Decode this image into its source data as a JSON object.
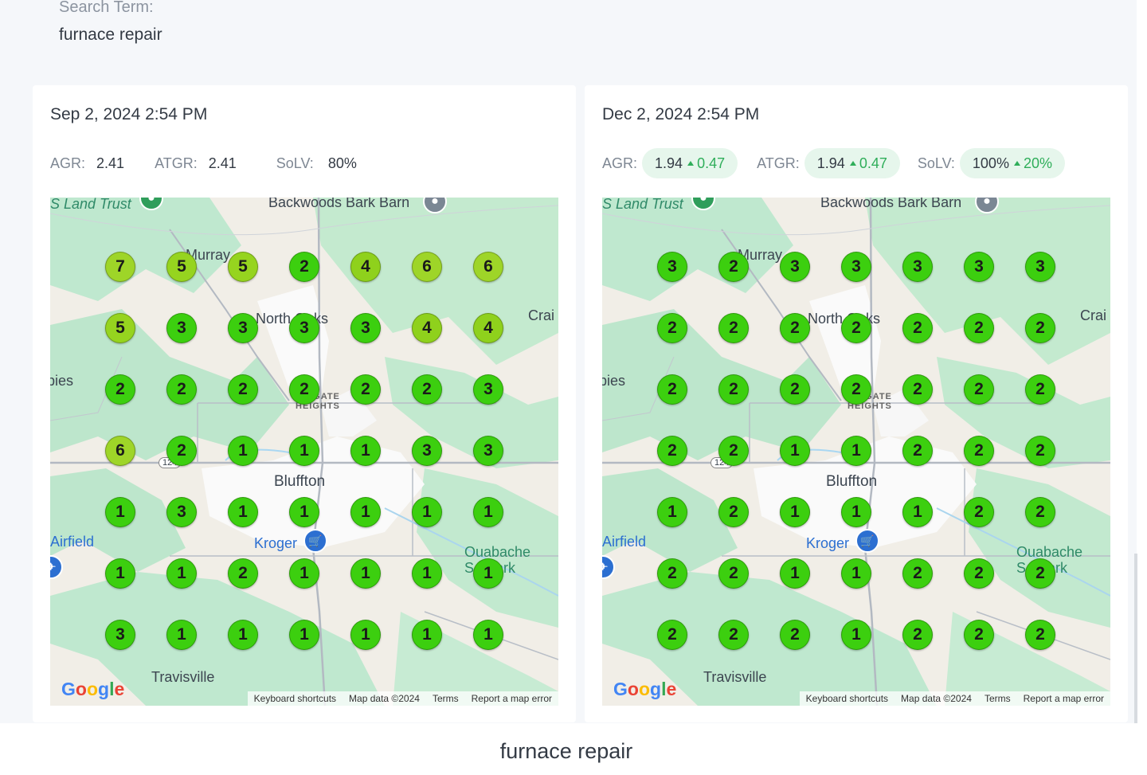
{
  "search": {
    "label": "Search Term:",
    "value": "furnace repair"
  },
  "caption": "furnace repair",
  "colors": {
    "level1": "#3ccf0f",
    "level2": "#3ccf0f",
    "level3": "#3ccf0f",
    "level4": "#8fd11c",
    "level5": "#96d41f",
    "level6": "#9ed528",
    "level7": "#9ed528",
    "delta": "#2fae5a"
  },
  "map": {
    "labels": {
      "land_trust": "S Land Trust",
      "bark_barn": "Backwoods Bark Barn",
      "murray": "Murray",
      "north_oaks": "North Oaks",
      "craig": "Crai",
      "pies": "pies",
      "gate_heights": "GATE\nHEIGHTS",
      "route": "124",
      "bluffton": "Bluffton",
      "airfield": "Airfield",
      "kroger": "Kroger",
      "ouabache": "Ouabache",
      "state_park": "S   Park",
      "travisville": "Travisville"
    },
    "google": [
      "G",
      "o",
      "o",
      "g",
      "l",
      "e"
    ],
    "attribution": [
      "Keyboard shortcuts",
      "Map data ©2024",
      "Terms",
      "Report a map error"
    ]
  },
  "snapshots": [
    {
      "date": "Sep 2, 2024 2:54 PM",
      "metrics": [
        {
          "label": "AGR:",
          "value": "2.41",
          "delta": ""
        },
        {
          "label": "ATGR:",
          "value": "2.41",
          "delta": ""
        },
        {
          "label": "SoLV:",
          "value": "80%",
          "delta": ""
        }
      ],
      "grid": [
        [
          7,
          5,
          5,
          2,
          4,
          6,
          6
        ],
        [
          5,
          3,
          3,
          3,
          3,
          4,
          4
        ],
        [
          2,
          2,
          2,
          2,
          2,
          2,
          3
        ],
        [
          6,
          2,
          1,
          1,
          1,
          3,
          3
        ],
        [
          1,
          3,
          1,
          1,
          1,
          1,
          1
        ],
        [
          1,
          1,
          2,
          1,
          1,
          1,
          1
        ],
        [
          3,
          1,
          1,
          1,
          1,
          1,
          1
        ]
      ]
    },
    {
      "date": "Dec 2, 2024 2:54 PM",
      "metrics": [
        {
          "label": "AGR:",
          "value": "1.94",
          "delta": "0.47"
        },
        {
          "label": "ATGR:",
          "value": "1.94",
          "delta": "0.47"
        },
        {
          "label": "SoLV:",
          "value": "100%",
          "delta": "20%"
        }
      ],
      "grid": [
        [
          3,
          2,
          3,
          3,
          3,
          3,
          3
        ],
        [
          2,
          2,
          2,
          2,
          2,
          2,
          2
        ],
        [
          2,
          2,
          2,
          2,
          2,
          2,
          2
        ],
        [
          2,
          2,
          1,
          1,
          2,
          2,
          2
        ],
        [
          1,
          2,
          1,
          1,
          1,
          2,
          2
        ],
        [
          2,
          2,
          1,
          1,
          2,
          2,
          2
        ],
        [
          2,
          2,
          2,
          1,
          2,
          2,
          2
        ]
      ]
    }
  ]
}
